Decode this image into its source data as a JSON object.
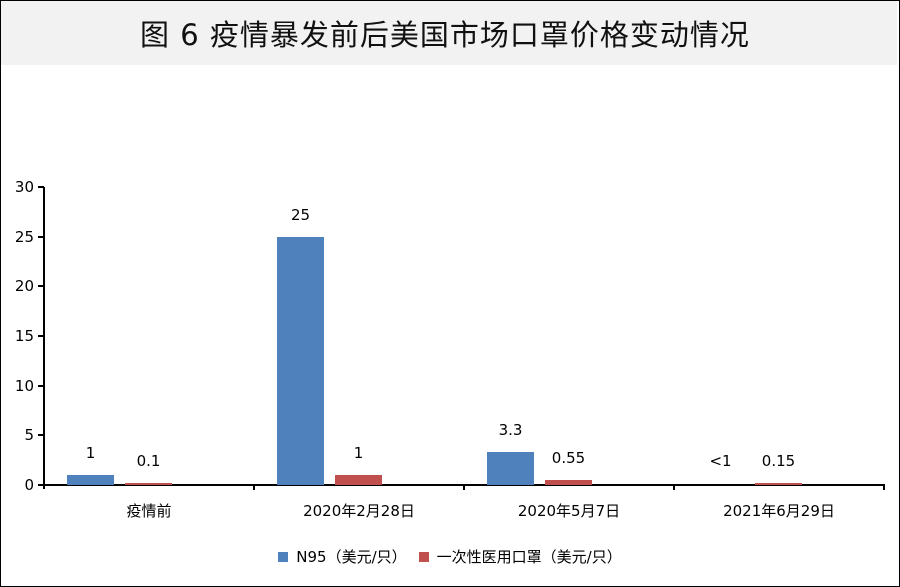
{
  "title": "图 6 疫情暴发前后美国市场口罩价格变动情况",
  "yaxis": {
    "ticks": [
      "0",
      "5",
      "10",
      "15",
      "20",
      "25",
      "30"
    ]
  },
  "categories": [
    "疫情前",
    "2020年2月28日",
    "2020年5月7日",
    "2021年6月29日"
  ],
  "series_labels": {
    "n95": "N95（美元/只）",
    "med": "一次性医用口罩（美元/只）"
  },
  "data_labels": {
    "n95": [
      "1",
      "25",
      "3.3",
      "<1"
    ],
    "med": [
      "0.1",
      "1",
      "0.55",
      "0.15"
    ]
  },
  "colors": {
    "n95": "#4f81bd",
    "med": "#c0504d"
  },
  "chart_data": {
    "type": "bar",
    "title": "图 6 疫情暴发前后美国市场口罩价格变动情况",
    "categories": [
      "疫情前",
      "2020年2月28日",
      "2020年5月7日",
      "2021年6月29日"
    ],
    "series": [
      {
        "name": "N95（美元/只）",
        "values": [
          1,
          25,
          3.3,
          0
        ],
        "labels": [
          "1",
          "25",
          "3.3",
          "<1"
        ],
        "color": "#4f81bd"
      },
      {
        "name": "一次性医用口罩（美元/只）",
        "values": [
          0.1,
          1,
          0.55,
          0.15
        ],
        "labels": [
          "0.1",
          "1",
          "0.55",
          "0.15"
        ],
        "color": "#c0504d"
      }
    ],
    "xlabel": "",
    "ylabel": "",
    "ylim": [
      0,
      30
    ],
    "yticks": [
      0,
      5,
      10,
      15,
      20,
      25,
      30
    ],
    "grid": false,
    "legend_position": "bottom"
  }
}
